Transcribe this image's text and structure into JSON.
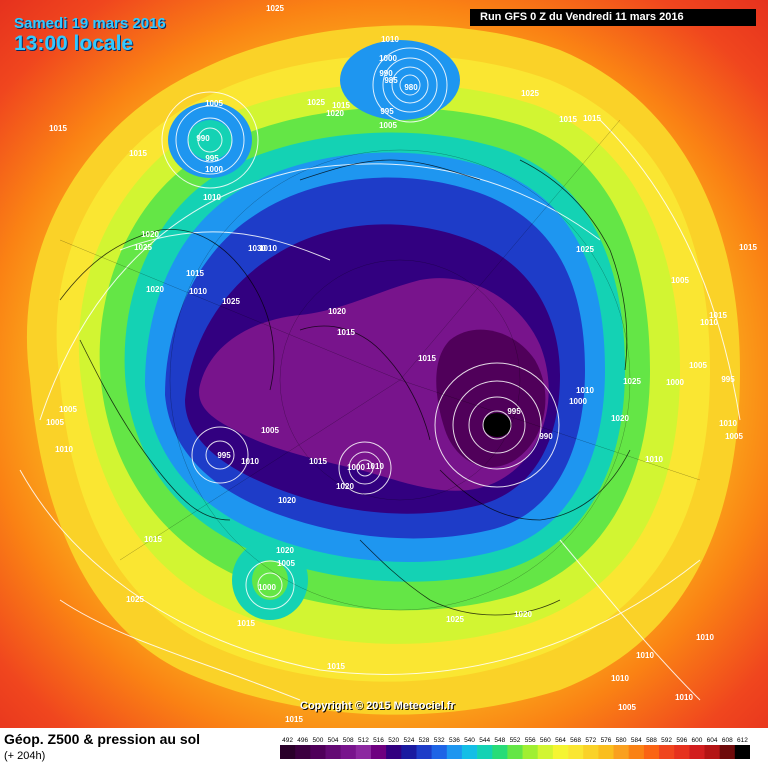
{
  "header": {
    "date_label": "Samedi 19 mars 2016",
    "time_label": "13:00 locale",
    "run_label": "Run GFS 0 Z du Vendredi 11 mars 2016"
  },
  "footer": {
    "title": "Géop. Z500 & pression au sol",
    "subtitle": "(+ 204h)",
    "copyright": "Copyright © 2015 Meteociel.fr"
  },
  "legend": {
    "values": [
      "492",
      "496",
      "500",
      "504",
      "508",
      "512",
      "516",
      "520",
      "524",
      "528",
      "532",
      "536",
      "540",
      "544",
      "548",
      "552",
      "556",
      "560",
      "564",
      "568",
      "572",
      "576",
      "580",
      "584",
      "588",
      "592",
      "596",
      "600",
      "604",
      "608",
      "612"
    ],
    "colors": [
      "#2a002a",
      "#3c0040",
      "#50005a",
      "#640a74",
      "#78148c",
      "#8c28a0",
      "#6e0080",
      "#320080",
      "#1a1aa0",
      "#1e3cc8",
      "#1e64e6",
      "#1e96f0",
      "#14bee6",
      "#14d2b4",
      "#28dc78",
      "#64e646",
      "#a0ef32",
      "#d2f532",
      "#f5f532",
      "#fae632",
      "#fad228",
      "#fabe1e",
      "#faa01e",
      "#fa8214",
      "#fa6414",
      "#f0461e",
      "#e6321e",
      "#d21e1e",
      "#b41414",
      "#6e0a0a",
      "#000000"
    ]
  },
  "pressure_labels": [
    {
      "text": "1025"
    },
    {
      "text": "1010"
    },
    {
      "text": "1000"
    },
    {
      "text": "990"
    },
    {
      "text": "985"
    },
    {
      "text": "980"
    },
    {
      "text": "1025"
    },
    {
      "text": "1015"
    },
    {
      "text": "1020"
    },
    {
      "text": "995"
    },
    {
      "text": "1005"
    },
    {
      "text": "1005"
    },
    {
      "text": "990"
    },
    {
      "text": "995"
    },
    {
      "text": "1000"
    },
    {
      "text": "1015"
    },
    {
      "text": "1015"
    },
    {
      "text": "1025"
    },
    {
      "text": "1015"
    },
    {
      "text": "1010"
    },
    {
      "text": "1020"
    },
    {
      "text": "1025"
    },
    {
      "text": "1030"
    },
    {
      "text": "1015"
    },
    {
      "text": "1020"
    },
    {
      "text": "1010"
    },
    {
      "text": "1025"
    },
    {
      "text": "1020"
    },
    {
      "text": "1015"
    },
    {
      "text": "1015"
    },
    {
      "text": "1025"
    },
    {
      "text": "1005"
    },
    {
      "text": "1005"
    },
    {
      "text": "1010"
    },
    {
      "text": "1010"
    },
    {
      "text": "1015"
    },
    {
      "text": "1015"
    },
    {
      "text": "995"
    },
    {
      "text": "995"
    },
    {
      "text": "990"
    },
    {
      "text": "1010"
    },
    {
      "text": "1000"
    },
    {
      "text": "1025"
    },
    {
      "text": "1020"
    },
    {
      "text": "1005"
    },
    {
      "text": "1010"
    },
    {
      "text": "1000"
    },
    {
      "text": "1010"
    },
    {
      "text": "1005"
    },
    {
      "text": "995"
    },
    {
      "text": "1015"
    },
    {
      "text": "1010"
    },
    {
      "text": "1015"
    },
    {
      "text": "1005"
    },
    {
      "text": "1010"
    },
    {
      "text": "1005"
    },
    {
      "text": "1000"
    },
    {
      "text": "1020"
    },
    {
      "text": "1015"
    },
    {
      "text": "1020"
    },
    {
      "text": "1020"
    },
    {
      "text": "1010"
    },
    {
      "text": "1005"
    },
    {
      "text": "1000"
    },
    {
      "text": "1025"
    },
    {
      "text": "1015"
    },
    {
      "text": "1025"
    },
    {
      "text": "1020"
    },
    {
      "text": "1015"
    },
    {
      "text": "1010"
    },
    {
      "text": "1010"
    },
    {
      "text": "1010"
    },
    {
      "text": "1005"
    },
    {
      "text": "1015"
    },
    {
      "text": "1010"
    }
  ]
}
